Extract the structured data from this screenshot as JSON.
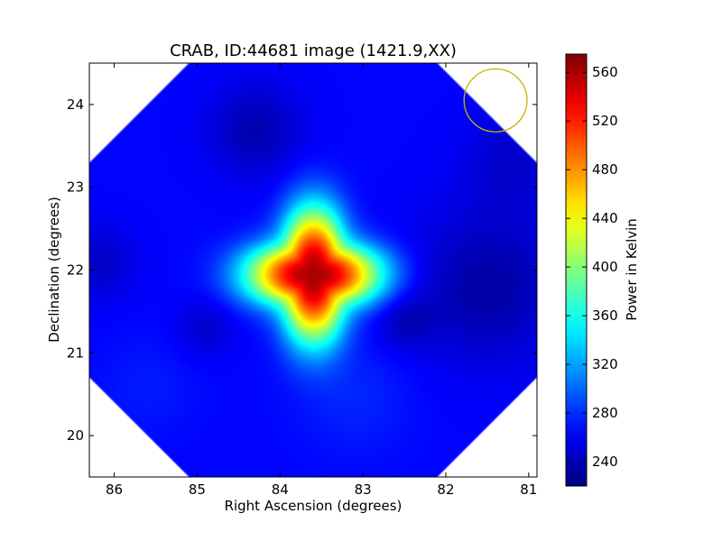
{
  "chart_data": {
    "type": "heatmap",
    "title": "CRAB, ID:44681 image (1421.9,XX)",
    "xlabel": "Right Ascension (degrees)",
    "ylabel": "Declination (degrees)",
    "colorbar_label": "Power in Kelvin",
    "xlim": [
      86.3,
      80.9
    ],
    "ylim": [
      19.5,
      24.5
    ],
    "x_reversed": true,
    "xticks": [
      86,
      85,
      84,
      83,
      82,
      81
    ],
    "yticks": [
      20,
      21,
      22,
      23,
      24
    ],
    "colorbar_range": [
      220,
      575
    ],
    "colorbar_ticks": [
      240,
      280,
      320,
      360,
      400,
      440,
      480,
      520,
      560
    ],
    "colormap": "jet",
    "peak": {
      "ra": 83.6,
      "dec": 21.95,
      "value": 560
    },
    "background_level": 265,
    "beam_circle": {
      "ra": 81.4,
      "dec": 24.05,
      "radius_deg": 0.38,
      "color": "#c8b400"
    },
    "grid": false
  }
}
